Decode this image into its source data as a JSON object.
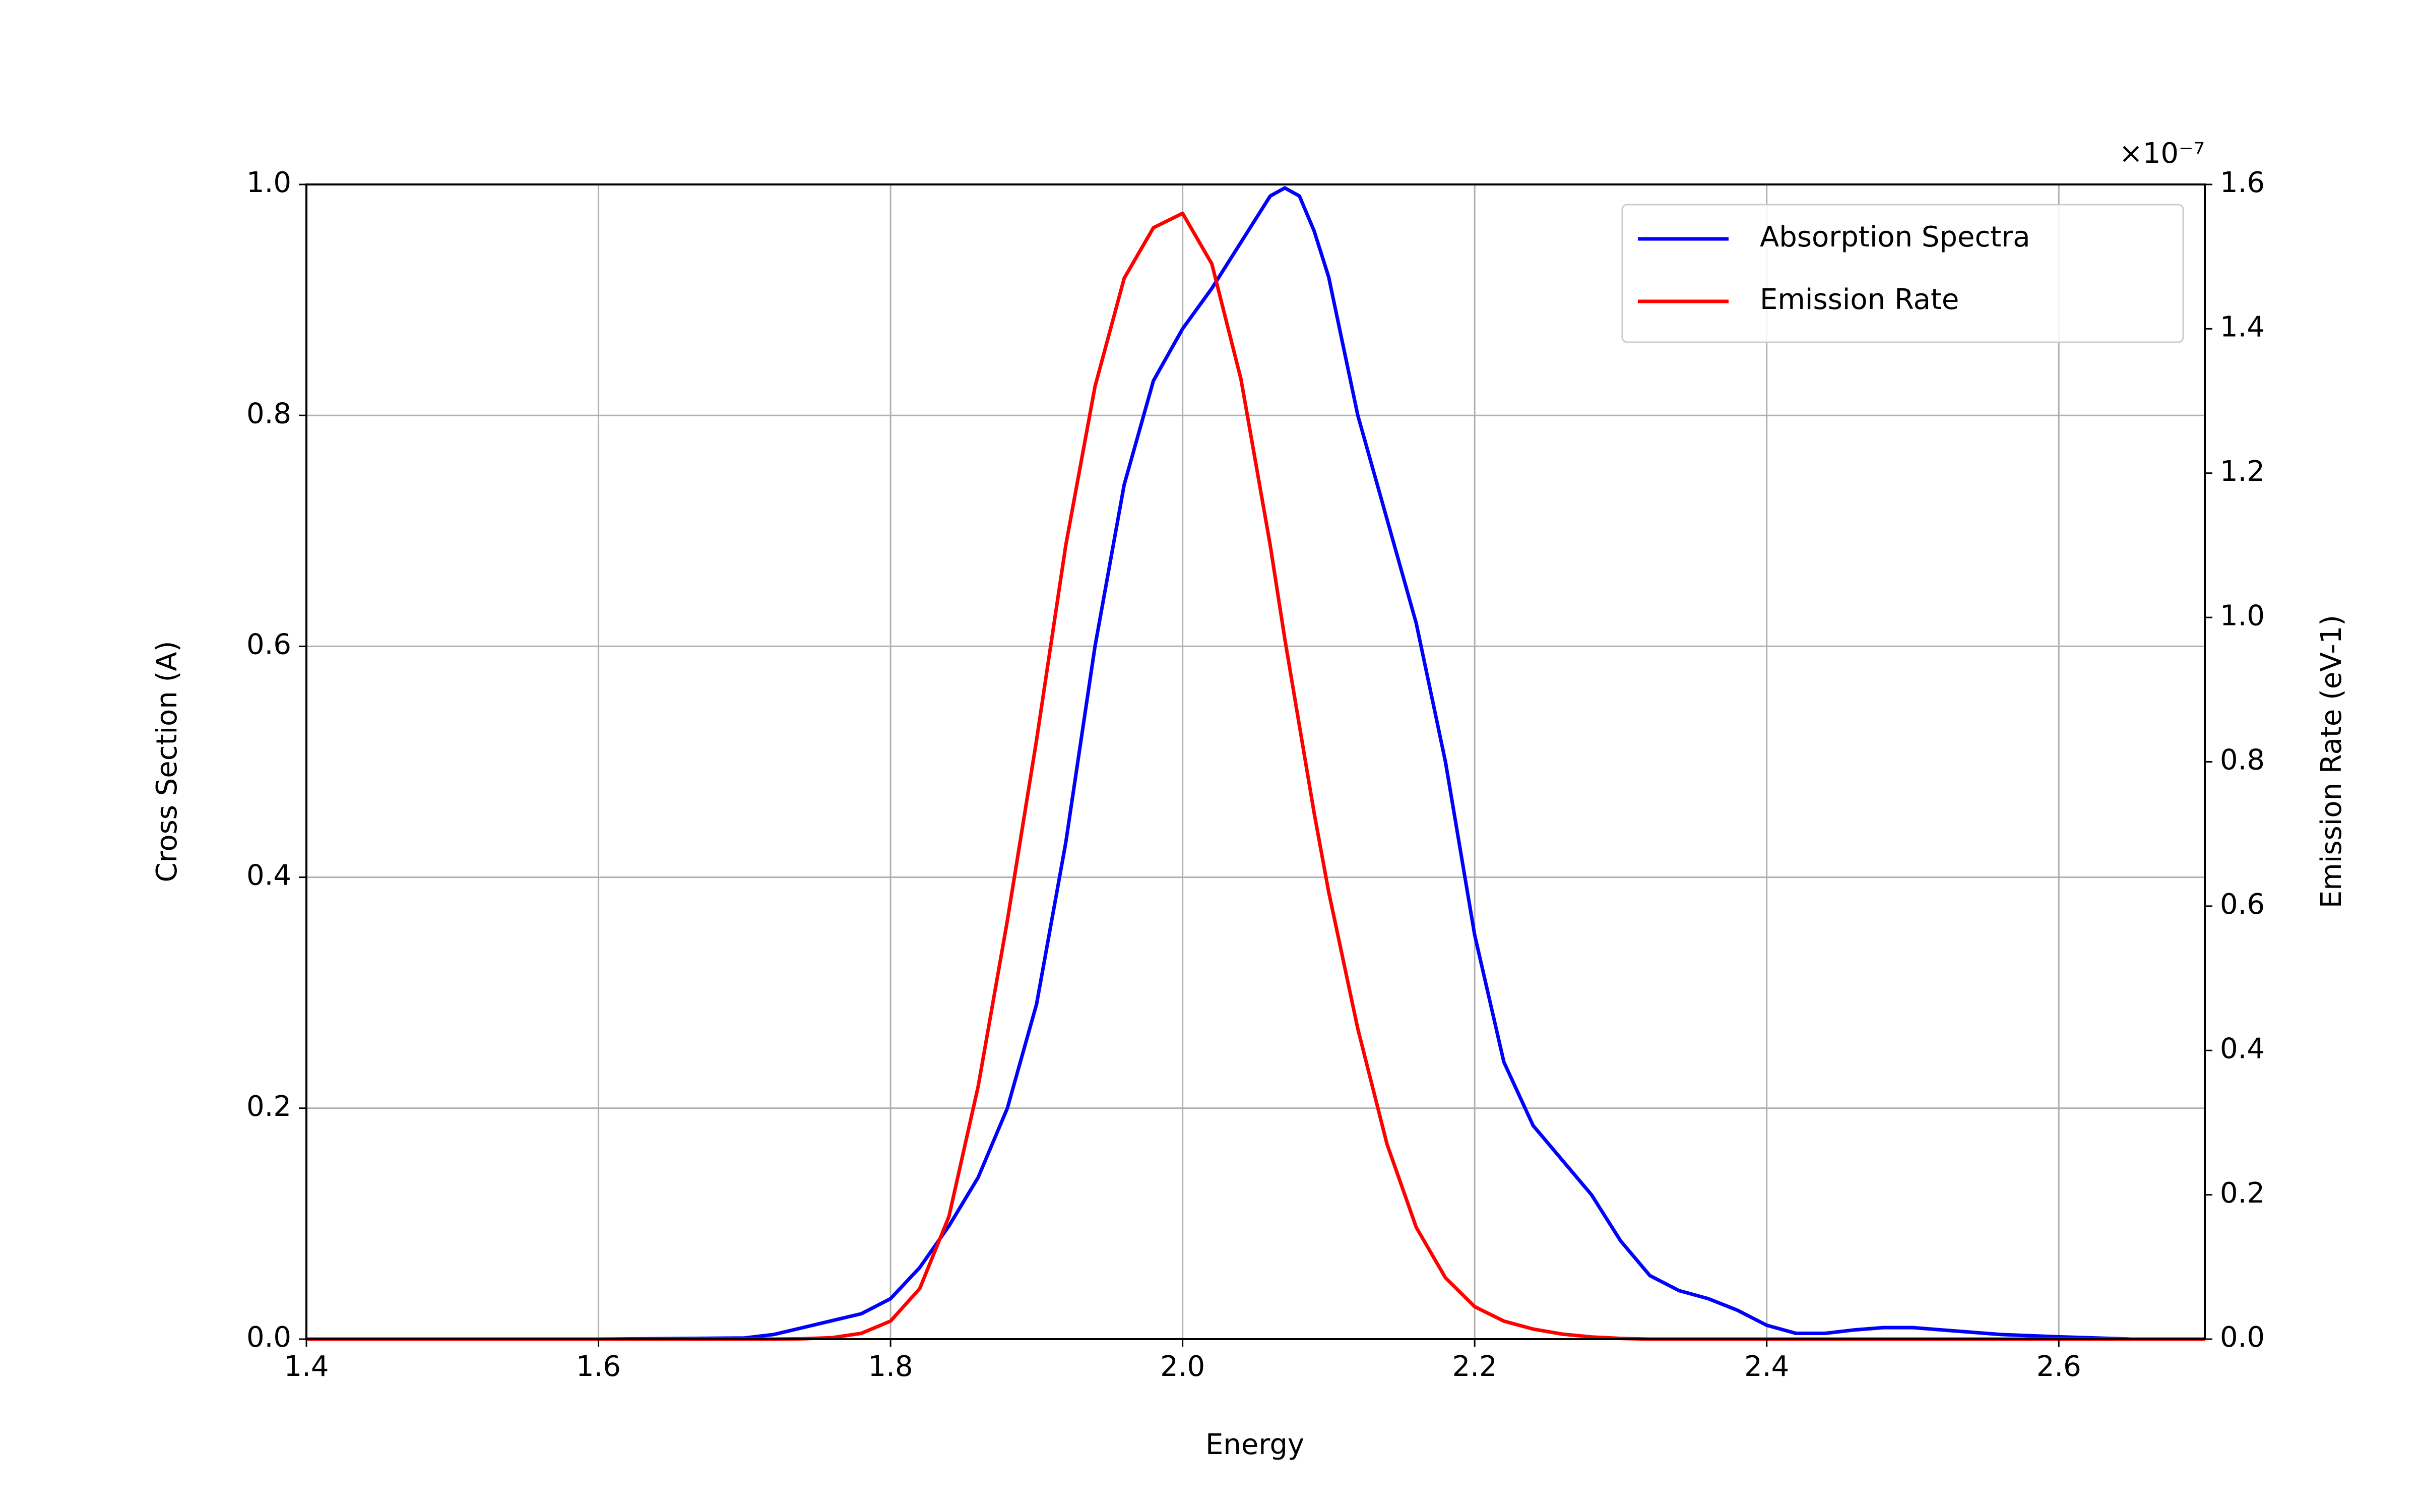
{
  "chart_data": {
    "type": "line",
    "xlabel": "Energy",
    "ylabel": "Cross Section (A)",
    "y2label": "Emission Rate (eV-1)",
    "y2_offset_label": "×10⁻⁷",
    "x": [
      1.4,
      1.5,
      1.6,
      1.7,
      1.72,
      1.74,
      1.76,
      1.78,
      1.8,
      1.82,
      1.84,
      1.86,
      1.88,
      1.9,
      1.92,
      1.94,
      1.96,
      1.98,
      2.0,
      2.02,
      2.04,
      2.06,
      2.07,
      2.08,
      2.09,
      2.1,
      2.12,
      2.14,
      2.16,
      2.18,
      2.2,
      2.22,
      2.24,
      2.26,
      2.28,
      2.3,
      2.32,
      2.34,
      2.36,
      2.38,
      2.4,
      2.42,
      2.44,
      2.46,
      2.48,
      2.5,
      2.52,
      2.54,
      2.56,
      2.58,
      2.6,
      2.65,
      2.7
    ],
    "series": [
      {
        "name": "Absorption Spectra",
        "color": "#0000ff",
        "axis": "y",
        "values": [
          0,
          0,
          0,
          0.001,
          0.004,
          0.01,
          0.016,
          0.022,
          0.035,
          0.062,
          0.098,
          0.14,
          0.2,
          0.29,
          0.43,
          0.6,
          0.74,
          0.83,
          0.875,
          0.91,
          0.95,
          0.99,
          0.997,
          0.99,
          0.96,
          0.92,
          0.8,
          0.71,
          0.62,
          0.5,
          0.35,
          0.24,
          0.185,
          0.155,
          0.125,
          0.085,
          0.055,
          0.042,
          0.035,
          0.025,
          0.012,
          0.005,
          0.005,
          0.008,
          0.01,
          0.01,
          0.008,
          0.006,
          0.004,
          0.003,
          0.002,
          0,
          0
        ]
      },
      {
        "name": "Emission Rate",
        "color": "#ff0000",
        "axis": "y2",
        "values": [
          0,
          0,
          0,
          0,
          0,
          5e-11,
          2e-10,
          8e-10,
          2.5e-09,
          7e-09,
          1.7e-08,
          3.5e-08,
          5.8e-08,
          8.3e-08,
          1.1e-07,
          1.32e-07,
          1.47e-07,
          1.54e-07,
          1.56e-07,
          1.49e-07,
          1.33e-07,
          1.1e-07,
          9.7e-08,
          8.5e-08,
          7.3e-08,
          6.2e-08,
          4.3e-08,
          2.7e-08,
          1.55e-08,
          8.5e-09,
          4.5e-09,
          2.5e-09,
          1.4e-09,
          7e-10,
          3e-10,
          1e-10,
          0,
          0,
          0,
          0,
          0,
          0,
          0,
          0,
          0,
          0,
          0,
          0,
          0,
          0,
          0,
          0,
          0
        ]
      }
    ],
    "xlim": [
      1.4,
      2.7
    ],
    "xticks": [
      1.4,
      1.6,
      1.8,
      {
        "value": 2,
        "label": "2.0"
      },
      2.2,
      2.4,
      2.6
    ],
    "ylim": [
      0,
      1
    ],
    "yticks": [
      {
        "value": 0,
        "label": "0.0"
      },
      0.2,
      0.4,
      0.6,
      0.8,
      {
        "value": 1,
        "label": "1.0"
      }
    ],
    "y2lim": [
      0,
      1.6e-07
    ],
    "y2ticks": [
      {
        "value": 0,
        "label": "0.0"
      },
      {
        "value": 2e-08,
        "label": "0.2"
      },
      {
        "value": 4e-08,
        "label": "0.4"
      },
      {
        "value": 6e-08,
        "label": "0.6"
      },
      {
        "value": 8e-08,
        "label": "0.8"
      },
      {
        "value": 1e-07,
        "label": "1.0"
      },
      {
        "value": 1.2e-07,
        "label": "1.2"
      },
      {
        "value": 1.4e-07,
        "label": "1.4"
      },
      {
        "value": 1.6e-07,
        "label": "1.6"
      }
    ],
    "grid": true,
    "legend": "upper right"
  }
}
